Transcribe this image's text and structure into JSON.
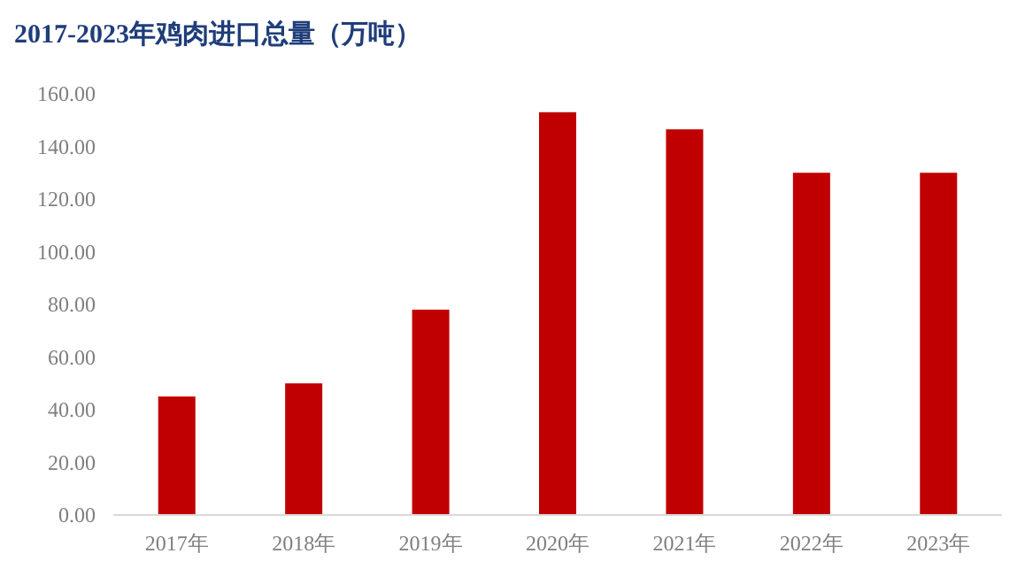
{
  "chart_data": {
    "type": "bar",
    "title": "2017-2023年鸡肉进口总量（万吨）",
    "categories": [
      "2017年",
      "2018年",
      "2019年",
      "2020年",
      "2021年",
      "2022年",
      "2023年"
    ],
    "values": [
      45,
      50,
      78,
      153,
      146.5,
      130,
      130
    ],
    "color": "#c00000",
    "ylim": [
      0,
      160
    ],
    "yticks": [
      {
        "value": 0,
        "label": "0.00"
      },
      {
        "value": 20,
        "label": "20.00"
      },
      {
        "value": 40,
        "label": "40.00"
      },
      {
        "value": 60,
        "label": "60.00"
      },
      {
        "value": 80,
        "label": "80.00"
      },
      {
        "value": 100,
        "label": "100.00"
      },
      {
        "value": 120,
        "label": "120.00"
      },
      {
        "value": 140,
        "label": "140.00"
      },
      {
        "value": 160,
        "label": "160.00"
      }
    ],
    "grid": false
  }
}
